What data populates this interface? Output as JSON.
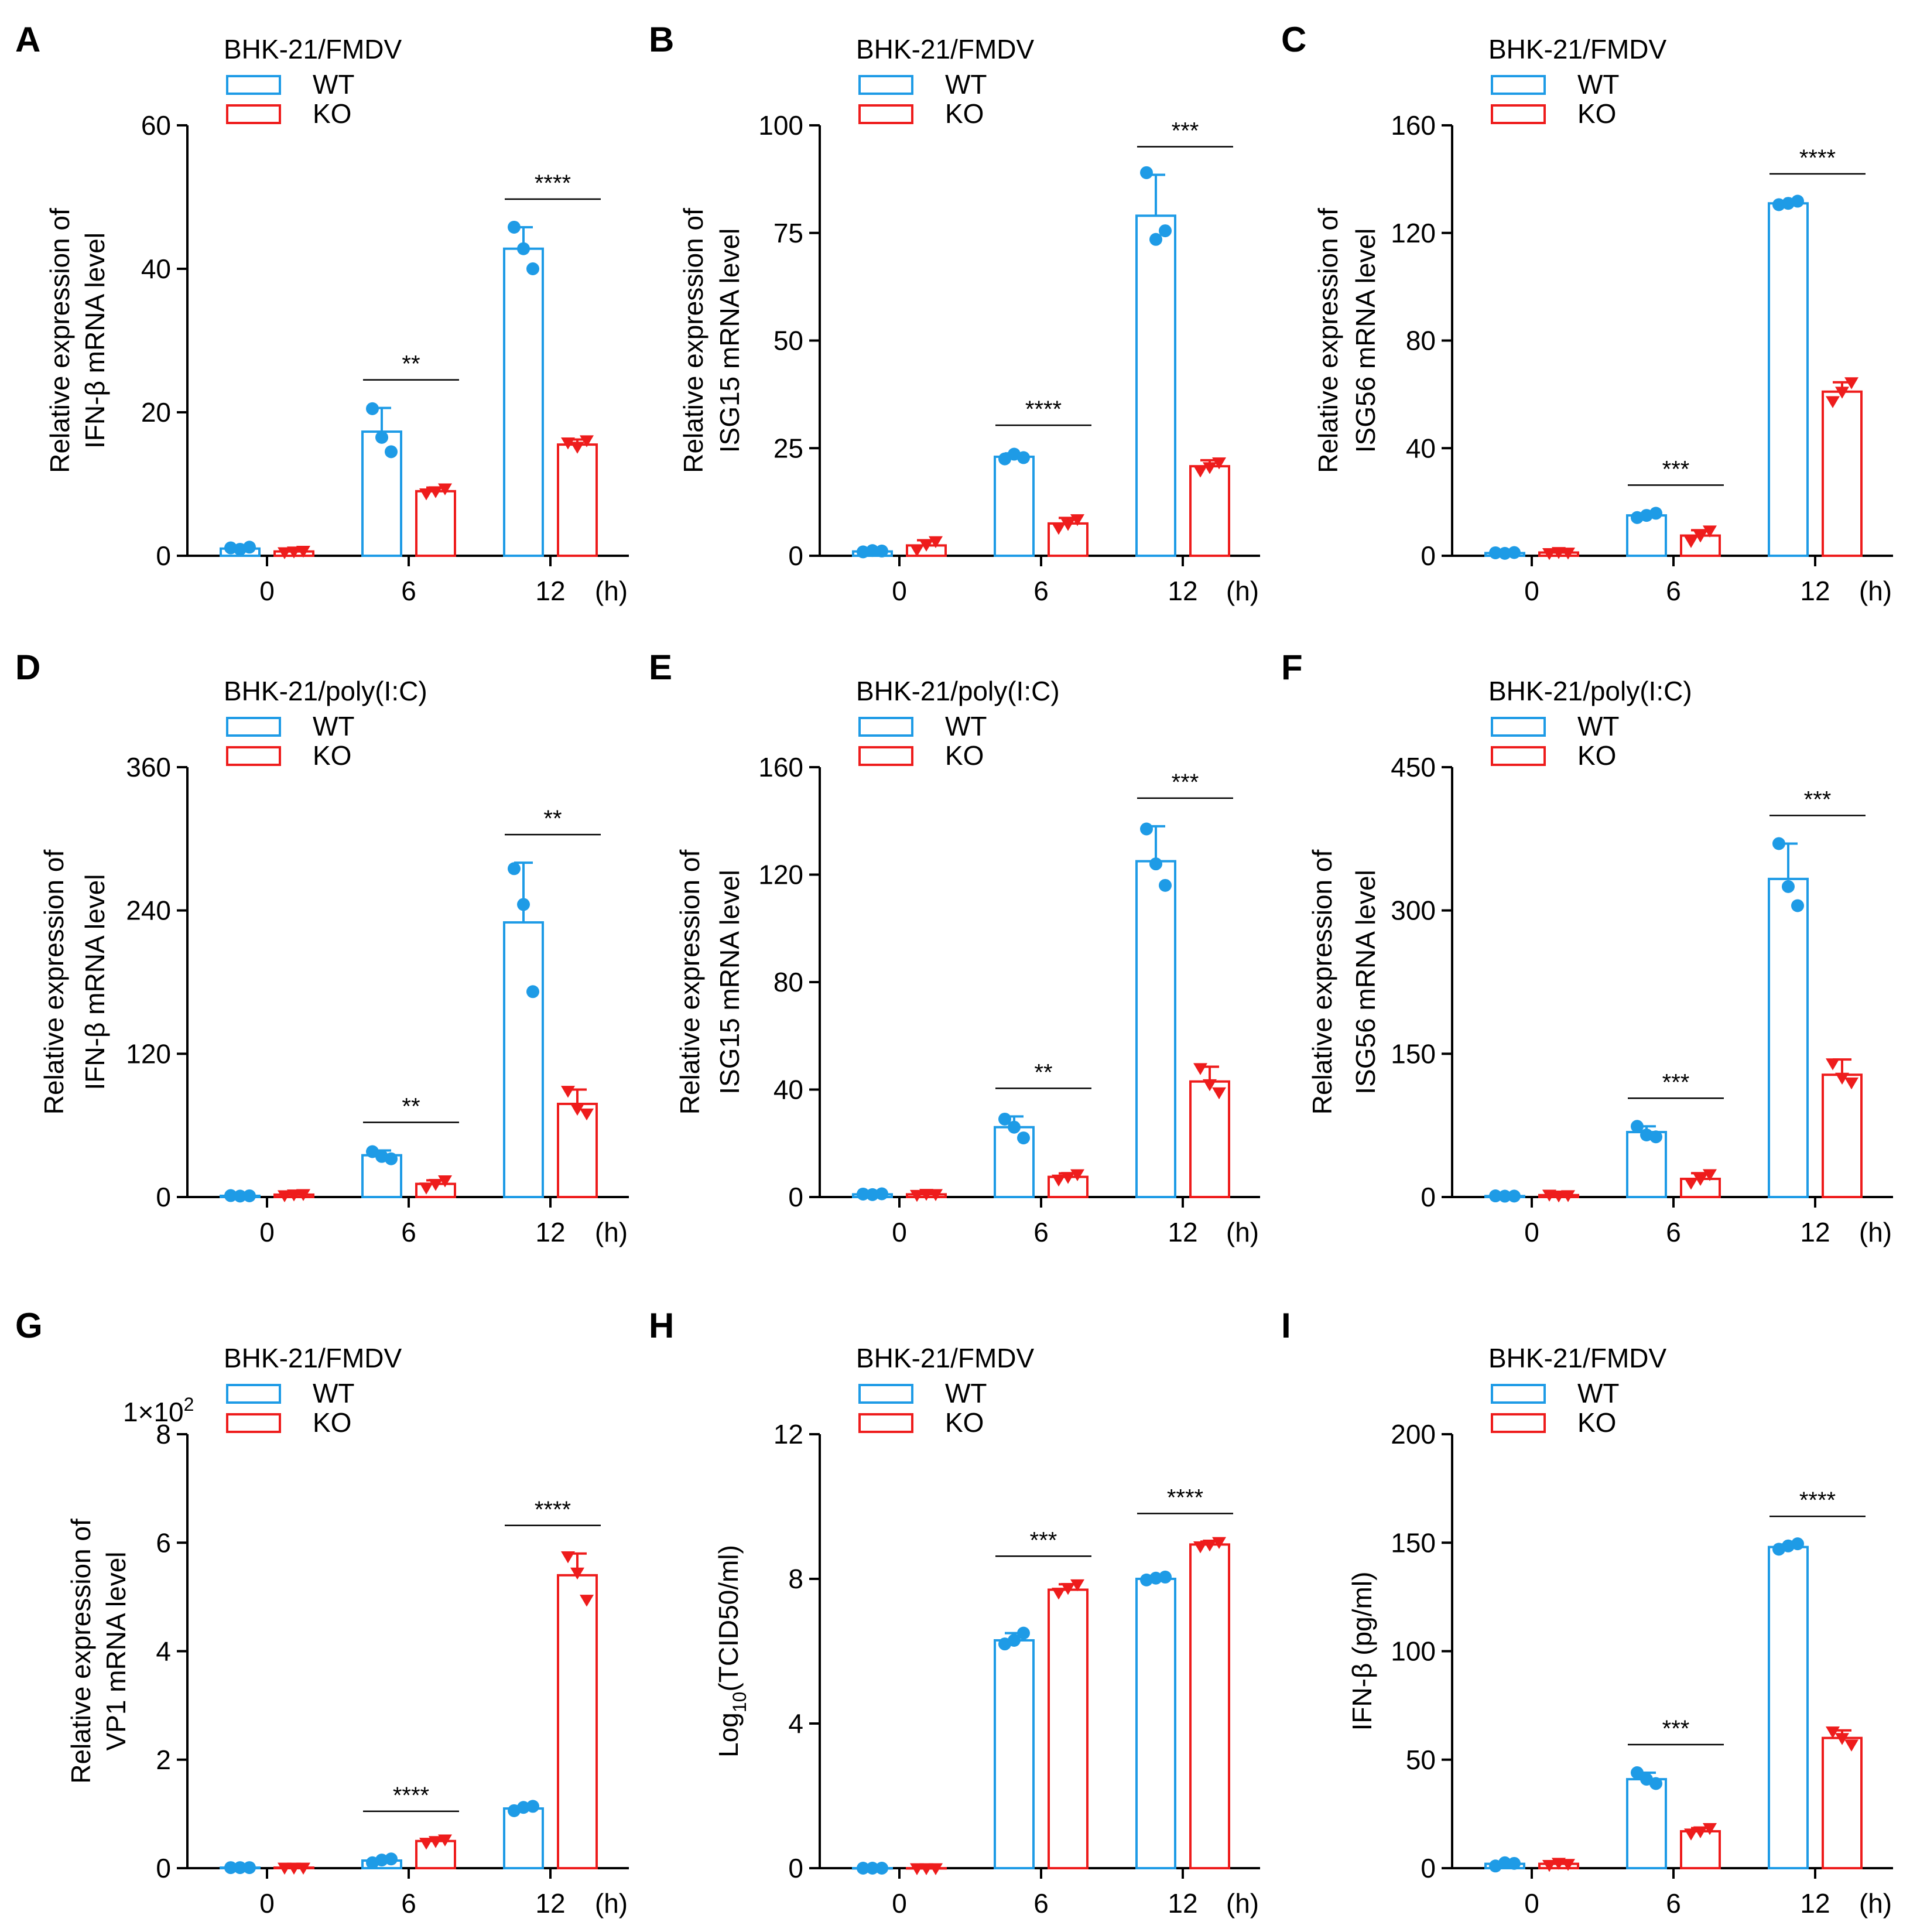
{
  "colors": {
    "wt": "#1e9be6",
    "ko": "#ee1c1c",
    "axis": "#000000"
  },
  "chart_data": [
    {
      "panel": "A",
      "type": "bar",
      "title": "BHK-21/FMDV",
      "ylabel": [
        "Relative expression of",
        "IFN-β mRNA level"
      ],
      "categories": [
        "0",
        "6",
        "12"
      ],
      "x_unit": "(h)",
      "ylim": [
        0,
        60
      ],
      "yticks": [
        "0",
        "20",
        "40",
        "60"
      ],
      "multiplier": null,
      "series": [
        {
          "name": "WT",
          "values": [
            1,
            17.3,
            42.8
          ],
          "errors": [
            0.2,
            3.3,
            3
          ],
          "points": [
            [
              1.1,
              0.9,
              1.2
            ],
            [
              20.5,
              16.5,
              14.5
            ],
            [
              45.8,
              42.8,
              40
            ]
          ]
        },
        {
          "name": "KO",
          "values": [
            0.6,
            9,
            15.5
          ],
          "errors": [
            0.1,
            0.5,
            0.7
          ],
          "points": [
            [
              0.5,
              0.6,
              0.7
            ],
            [
              8.7,
              9,
              9.4
            ],
            [
              15.8,
              15.2,
              16.1
            ]
          ]
        }
      ],
      "significance": [
        "**",
        "****"
      ]
    },
    {
      "panel": "B",
      "type": "bar",
      "title": "BHK-21/FMDV",
      "ylabel": [
        "Relative expression of",
        "ISG15 mRNA level"
      ],
      "categories": [
        "0",
        "6",
        "12"
      ],
      "x_unit": "(h)",
      "ylim": [
        0,
        100
      ],
      "yticks": [
        "0",
        "25",
        "50",
        "75",
        "100"
      ],
      "multiplier": null,
      "series": [
        {
          "name": "WT",
          "values": [
            1,
            23,
            79
          ],
          "errors": [
            0.3,
            0.8,
            9.5
          ],
          "points": [
            [
              0.9,
              1.2,
              1.1
            ],
            [
              22.5,
              23.6,
              22.8
            ],
            [
              89,
              73.5,
              75.5
            ]
          ]
        },
        {
          "name": "KO",
          "values": [
            2.4,
            7.5,
            20.8
          ],
          "errors": [
            1.2,
            1.3,
            1.4
          ],
          "points": [
            [
              1.4,
              2.6,
              3.4
            ],
            [
              6.5,
              7.4,
              8.5
            ],
            [
              19.8,
              20.6,
              21.7
            ]
          ]
        }
      ],
      "significance": [
        "****",
        "***"
      ]
    },
    {
      "panel": "C",
      "type": "bar",
      "title": "BHK-21/FMDV",
      "ylabel": [
        "Relative expression of",
        "ISG56 mRNA level"
      ],
      "categories": [
        "0",
        "6",
        "12"
      ],
      "x_unit": "(h)",
      "ylim": [
        0,
        160
      ],
      "yticks": [
        "0",
        "40",
        "80",
        "120",
        "160"
      ],
      "multiplier": null,
      "series": [
        {
          "name": "WT",
          "values": [
            1,
            15,
            131
          ],
          "errors": [
            0.2,
            0.8,
            0.5
          ],
          "points": [
            [
              1.1,
              0.9,
              1.2
            ],
            [
              14.2,
              15,
              15.8
            ],
            [
              130.5,
              131,
              131.8
            ]
          ]
        },
        {
          "name": "KO",
          "values": [
            1.2,
            7.5,
            61
          ],
          "errors": [
            0.3,
            2,
            3.5
          ],
          "points": [
            [
              1,
              1.4,
              1.2
            ],
            [
              5.5,
              7.5,
              9.4
            ],
            [
              57.5,
              61,
              64.5
            ]
          ]
        }
      ],
      "significance": [
        "***",
        "****"
      ]
    },
    {
      "panel": "D",
      "type": "bar",
      "title": "BHK-21/poly(I:C)",
      "ylabel": [
        "Relative expression of",
        "IFN-β mRNA level"
      ],
      "categories": [
        "0",
        "6",
        "12"
      ],
      "x_unit": "(h)",
      "ylim": [
        0,
        360
      ],
      "yticks": [
        "0",
        "120",
        "240",
        "360"
      ],
      "multiplier": null,
      "series": [
        {
          "name": "WT",
          "values": [
            1,
            35,
            230
          ],
          "errors": [
            0.3,
            4,
            50
          ],
          "points": [
            [
              1.2,
              0.8,
              1
            ],
            [
              38,
              34,
              32
            ],
            [
              275,
              245,
              172
            ]
          ]
        },
        {
          "name": "KO",
          "values": [
            2,
            11,
            78
          ],
          "errors": [
            0.5,
            3,
            12
          ],
          "points": [
            [
              1.5,
              2.2,
              2.5
            ],
            [
              8,
              11,
              14
            ],
            [
              89,
              74,
              70
            ]
          ]
        }
      ],
      "significance": [
        "**",
        "**"
      ]
    },
    {
      "panel": "E",
      "type": "bar",
      "title": "BHK-21/poly(I:C)",
      "ylabel": [
        "Relative expression of",
        "ISG15 mRNA level"
      ],
      "categories": [
        "0",
        "6",
        "12"
      ],
      "x_unit": "(h)",
      "ylim": [
        0,
        160
      ],
      "yticks": [
        "0",
        "40",
        "80",
        "120",
        "160"
      ],
      "multiplier": null,
      "series": [
        {
          "name": "WT",
          "values": [
            1,
            26,
            125
          ],
          "errors": [
            0.3,
            4,
            13
          ],
          "points": [
            [
              1.1,
              0.9,
              1.2
            ],
            [
              29,
              26,
              22
            ],
            [
              137,
              124,
              116
            ]
          ]
        },
        {
          "name": "KO",
          "values": [
            1,
            7.5,
            43
          ],
          "errors": [
            0.3,
            1.3,
            5.5
          ],
          "points": [
            [
              0.8,
              1.2,
              1.1
            ],
            [
              6.5,
              7.5,
              8.5
            ],
            [
              48,
              42,
              39
            ]
          ]
        }
      ],
      "significance": [
        "**",
        "***"
      ]
    },
    {
      "panel": "F",
      "type": "bar",
      "title": "BHK-21/poly(I:C)",
      "ylabel": [
        "Relative expression of",
        "ISG56 mRNA level"
      ],
      "categories": [
        "0",
        "6",
        "12"
      ],
      "x_unit": "(h)",
      "ylim": [
        0,
        450
      ],
      "yticks": [
        "0",
        "150",
        "300",
        "450"
      ],
      "multiplier": null,
      "series": [
        {
          "name": "WT",
          "values": [
            1,
            68,
            333
          ],
          "errors": [
            0.3,
            6,
            37
          ],
          "points": [
            [
              1.2,
              0.9,
              1
            ],
            [
              74,
              65,
              63
            ],
            [
              370,
              325,
              305
            ]
          ]
        },
        {
          "name": "KO",
          "values": [
            2,
            19,
            128
          ],
          "errors": [
            0.5,
            6,
            16
          ],
          "points": [
            [
              2.5,
              1.6,
              2
            ],
            [
              15,
              19,
              24
            ],
            [
              140,
              125,
              120
            ]
          ]
        }
      ],
      "significance": [
        "***",
        "***"
      ]
    },
    {
      "panel": "G",
      "type": "bar",
      "title": "BHK-21/FMDV",
      "ylabel": [
        "Relative expression of",
        "VP1 mRNA level"
      ],
      "categories": [
        "0",
        "6",
        "12"
      ],
      "x_unit": "(h)",
      "ylim": [
        0,
        8
      ],
      "yticks": [
        "0",
        "2",
        "4",
        "6",
        "8"
      ],
      "multiplier": [
        "1×10",
        "2"
      ],
      "series": [
        {
          "name": "WT",
          "values": [
            0.01,
            0.14,
            1.1
          ],
          "errors": [
            0.01,
            0.04,
            0.04
          ],
          "points": [
            [
              0.01,
              0.01,
              0.01
            ],
            [
              0.1,
              0.15,
              0.17
            ],
            [
              1.06,
              1.12,
              1.14
            ]
          ]
        },
        {
          "name": "KO",
          "values": [
            0.01,
            0.5,
            5.4
          ],
          "errors": [
            0.01,
            0.03,
            0.4
          ],
          "points": [
            [
              0.01,
              0.01,
              0.01
            ],
            [
              0.47,
              0.5,
              0.53
            ],
            [
              5.75,
              5.45,
              4.95
            ]
          ]
        }
      ],
      "significance": [
        "****",
        "****"
      ]
    },
    {
      "panel": "H",
      "type": "bar",
      "title": "BHK-21/FMDV",
      "ylabel": [
        "Log",
        "10",
        "(TCID50/ml)"
      ],
      "categories": [
        "0",
        "6",
        "12"
      ],
      "x_unit": "(h)",
      "ylim": [
        0,
        12
      ],
      "yticks": [
        "0",
        "4",
        "8",
        "12"
      ],
      "multiplier": null,
      "series": [
        {
          "name": "WT",
          "values": [
            0,
            6.3,
            8
          ],
          "errors": [
            0,
            0.2,
            0.05
          ],
          "points": [
            [
              0,
              0,
              0
            ],
            [
              6.2,
              6.3,
              6.5
            ],
            [
              7.97,
              8.02,
              8.05
            ]
          ]
        },
        {
          "name": "KO",
          "values": [
            0,
            7.7,
            8.95
          ],
          "errors": [
            0,
            0.15,
            0.08
          ],
          "points": [
            [
              0,
              0,
              0
            ],
            [
              7.62,
              7.75,
              7.85
            ],
            [
              8.9,
              8.95,
              9.02
            ]
          ]
        }
      ],
      "significance": [
        "***",
        "****"
      ]
    },
    {
      "panel": "I",
      "type": "bar",
      "title": "BHK-21/FMDV",
      "ylabel": [
        "IFN-β (pg/ml)"
      ],
      "categories": [
        "0",
        "6",
        "12"
      ],
      "x_unit": "(h)",
      "ylim": [
        0,
        200
      ],
      "yticks": [
        "0",
        "50",
        "100",
        "150",
        "200"
      ],
      "multiplier": null,
      "series": [
        {
          "name": "WT",
          "values": [
            2,
            41,
            148
          ],
          "errors": [
            1,
            3,
            1.2
          ],
          "points": [
            [
              1,
              2.5,
              2.2
            ],
            [
              44,
              41,
              39
            ],
            [
              147,
              148.5,
              149.5
            ]
          ]
        },
        {
          "name": "KO",
          "values": [
            2,
            17,
            60
          ],
          "errors": [
            0.8,
            1.5,
            3.5
          ],
          "points": [
            [
              1.5,
              2.5,
              2
            ],
            [
              16,
              17,
              18.5
            ],
            [
              63,
              60,
              57
            ]
          ]
        }
      ],
      "significance": [
        "***",
        "****"
      ]
    }
  ]
}
